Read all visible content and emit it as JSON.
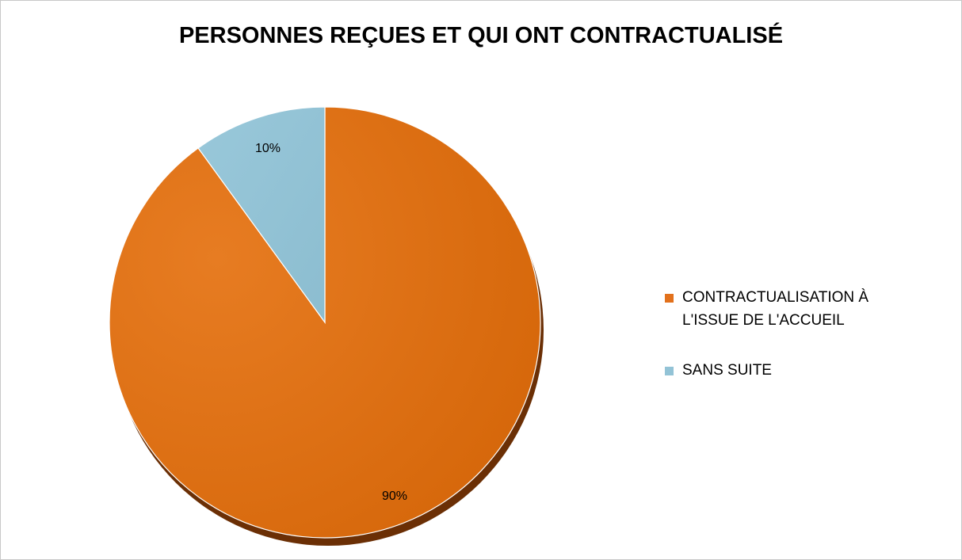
{
  "chart_data": {
    "type": "pie",
    "title": "PERSONNES REÇUES ET QUI ONT CONTRACTUALISÉ",
    "slices": [
      {
        "label": "CONTRACTUALISATION À L'ISSUE DE L'ACCUEIL",
        "value": 90,
        "data_label": "90%",
        "color": "#e2711c"
      },
      {
        "label": "SANS SUITE",
        "value": 10,
        "data_label": "10%",
        "color": "#93c3d6"
      }
    ],
    "legend_position": "right"
  },
  "colors": {
    "primary_slice": "#e2711c",
    "primary_slice_dark": "#d36508",
    "shadow": "#6b2f05",
    "secondary_slice": "#93c3d6",
    "secondary_slice_dark": "#86b8cc"
  }
}
